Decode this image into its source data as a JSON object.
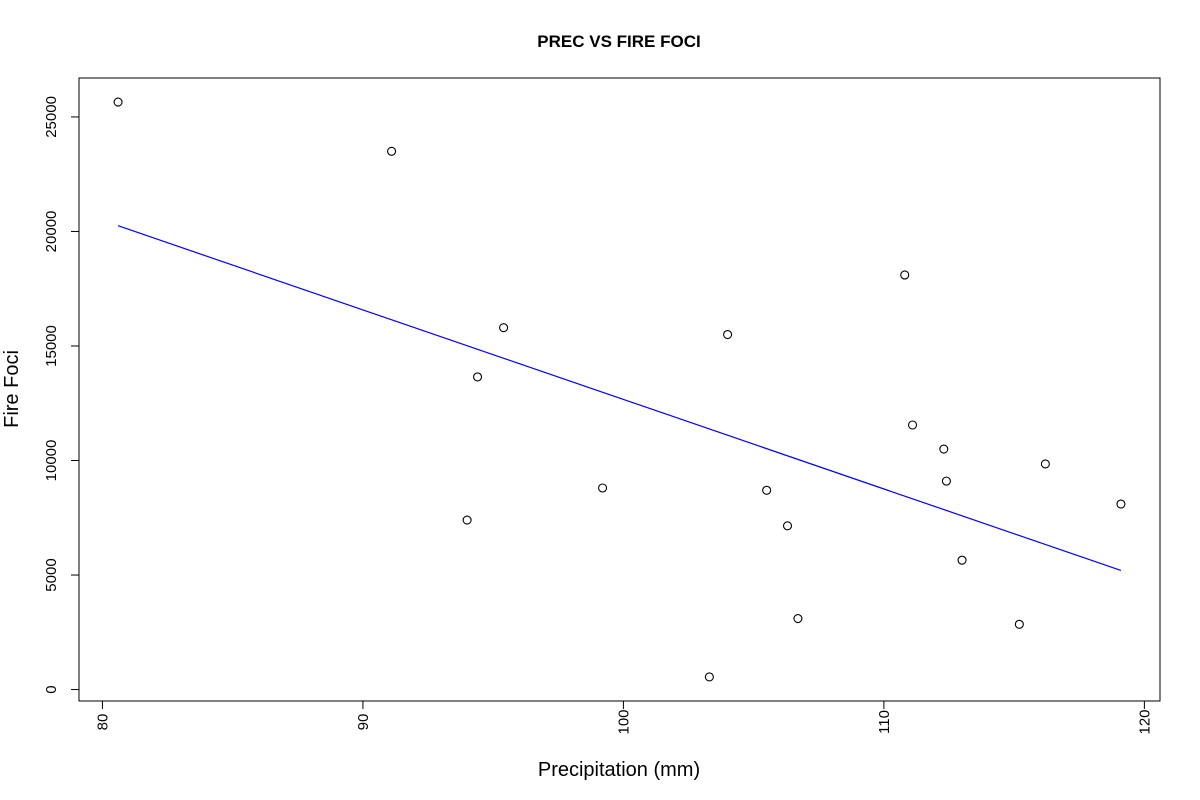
{
  "chart_data": {
    "type": "scatter",
    "title": "PREC VS FIRE FOCI",
    "xlabel": "Precipitation (mm)",
    "ylabel": "Fire Foci",
    "xlim": [
      79.1,
      120.6
    ],
    "ylim": [
      -500,
      26700
    ],
    "x_ticks": [
      80,
      90,
      100,
      110,
      120
    ],
    "y_ticks": [
      0,
      5000,
      10000,
      15000,
      20000,
      25000
    ],
    "x_tick_labels": [
      "80",
      "90",
      "100",
      "110",
      "120"
    ],
    "y_tick_labels": [
      "0",
      "5000",
      "10000",
      "15000",
      "20000",
      "25000"
    ],
    "grid": false,
    "points": [
      {
        "x": 80.6,
        "y": 25650
      },
      {
        "x": 91.1,
        "y": 23500
      },
      {
        "x": 94.0,
        "y": 7400
      },
      {
        "x": 94.4,
        "y": 13650
      },
      {
        "x": 95.4,
        "y": 15800
      },
      {
        "x": 99.2,
        "y": 8800
      },
      {
        "x": 103.3,
        "y": 550
      },
      {
        "x": 104.0,
        "y": 15500
      },
      {
        "x": 105.5,
        "y": 8700
      },
      {
        "x": 106.3,
        "y": 7150
      },
      {
        "x": 106.7,
        "y": 3100
      },
      {
        "x": 110.8,
        "y": 18100
      },
      {
        "x": 111.1,
        "y": 11550
      },
      {
        "x": 112.3,
        "y": 10500
      },
      {
        "x": 112.4,
        "y": 9100
      },
      {
        "x": 113.0,
        "y": 5650
      },
      {
        "x": 115.2,
        "y": 2850
      },
      {
        "x": 116.2,
        "y": 9850
      },
      {
        "x": 119.1,
        "y": 8100
      }
    ],
    "fit_line": {
      "color": "#0000ff",
      "start": {
        "x": 80.6,
        "y": 20250
      },
      "end": {
        "x": 119.1,
        "y": 5200
      }
    },
    "point_color": "#000000"
  }
}
